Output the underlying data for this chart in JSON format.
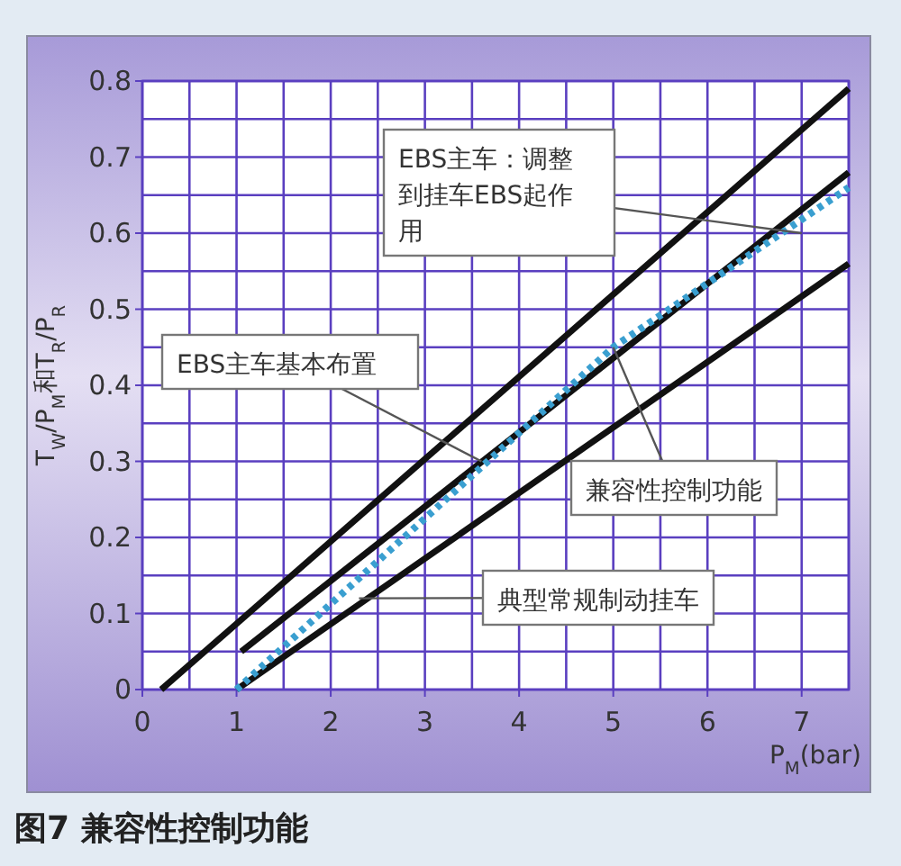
{
  "chart_data": {
    "type": "line",
    "title": "图7 兼容性控制功能",
    "xlabel": "P$_{M}$(bar)",
    "ylabel": "T$_{W}$/P$_{M}$和T$_{R}$/P$_{R}$",
    "series": [
      {
        "x": [
          0.2,
          7.5
        ],
        "values": [
          0,
          0.79
        ],
        "color": "#111111",
        "line_style": "solid"
      },
      {
        "x": [
          1.05,
          7.5
        ],
        "values": [
          0.05,
          0.68
        ],
        "color": "#111111",
        "line_style": "solid"
      },
      {
        "x": [
          1,
          7.5
        ],
        "values": [
          0,
          0.56
        ],
        "color": "#111111",
        "line_style": "solid"
      },
      {
        "x": [
          1,
          5,
          7.5
        ],
        "values": [
          0,
          0.45,
          0.66
        ],
        "color": "#3a9fd0",
        "line_style": "dotted"
      }
    ],
    "xlim": [
      0,
      7.5
    ],
    "ylim": [
      0,
      0.8
    ],
    "xticks": [
      0,
      {
        "value": 0.5,
        "label": null
      },
      1,
      {
        "value": 1.5,
        "label": null
      },
      2,
      {
        "value": 2.5,
        "label": null
      },
      3,
      {
        "value": 3.5,
        "label": null
      },
      4,
      {
        "value": 4.5,
        "label": null
      },
      5,
      {
        "value": 5.5,
        "label": null
      },
      6,
      {
        "value": 6.5,
        "label": null
      },
      7,
      {
        "value": 7.5,
        "label": null
      }
    ],
    "yticks": [
      0,
      {
        "value": 0.05,
        "label": null
      },
      0.1,
      {
        "value": 0.15,
        "label": null
      },
      0.2,
      {
        "value": 0.25,
        "label": null
      },
      0.3,
      {
        "value": 0.35,
        "label": null
      },
      0.4,
      {
        "value": 0.45,
        "label": null
      },
      0.5,
      {
        "value": 0.55,
        "label": null
      },
      0.6,
      {
        "value": 0.65,
        "label": null
      },
      0.7,
      {
        "value": 0.75,
        "label": null
      },
      0.8
    ],
    "grid": true,
    "annotations": [
      {
        "text": "EBS主车：调整到挂车EBS起作用",
        "x": 7.0,
        "y": 0.6
      },
      {
        "text": "EBS主车基本布置",
        "x": 3.6,
        "y": 0.3
      },
      {
        "text": "兼容性控制功能",
        "x": 5,
        "y": 0.45
      },
      {
        "text": "典型常规制动挂车",
        "x": 2.3,
        "y": 0.12
      }
    ]
  }
}
